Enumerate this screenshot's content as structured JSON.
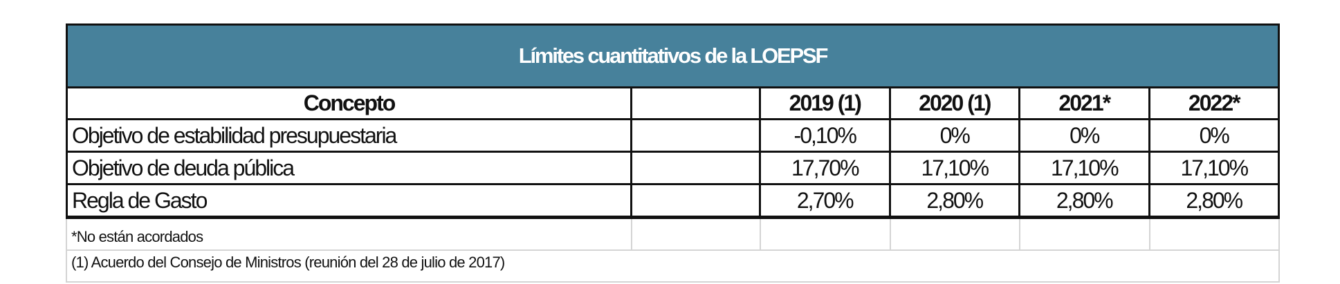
{
  "title": "Límites cuantitativos de la LOEPSF",
  "columns": [
    "Concepto",
    "",
    "2019 (1)",
    "2020 (1)",
    "2021*",
    "2022*"
  ],
  "rows": [
    {
      "concepto": "Objetivo de estabilidad presupuestaria",
      "values": [
        "-0,10%",
        "0%",
        "0%",
        "0%"
      ]
    },
    {
      "concepto": "Objetivo de deuda pública",
      "values": [
        "17,70%",
        "17,10%",
        "17,10%",
        "17,10%"
      ]
    },
    {
      "concepto": "Regla de Gasto",
      "values": [
        "2,70%",
        "2,80%",
        "2,80%",
        "2,80%"
      ]
    }
  ],
  "notes": [
    "*No están acordados",
    "(1) Acuerdo del Consejo de Ministros (reunión del 28 de julio de 2017)"
  ]
}
